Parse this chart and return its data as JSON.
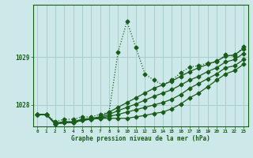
{
  "xlabel": "Graphe pression niveau de la mer (hPa)",
  "background_color": "#cce8e8",
  "grid_color": "#a8cccc",
  "line_color": "#1a5c1a",
  "ylim": [
    1027.55,
    1030.1
  ],
  "xlim": [
    -0.5,
    23.5
  ],
  "yticks": [
    1028,
    1029
  ],
  "xticks": [
    0,
    1,
    2,
    3,
    4,
    5,
    6,
    7,
    8,
    9,
    10,
    11,
    12,
    13,
    14,
    15,
    16,
    17,
    18,
    19,
    20,
    21,
    22,
    23
  ],
  "series": [
    {
      "data": [
        1027.8,
        1027.8,
        1027.65,
        1027.7,
        1027.7,
        1027.75,
        1027.75,
        1027.8,
        1027.85,
        1029.1,
        1029.75,
        1029.2,
        1028.65,
        1028.52,
        1028.42,
        1028.52,
        1028.67,
        1028.8,
        1028.82,
        1028.88,
        1028.9,
        1029.05,
        1029.02,
        1029.22
      ],
      "ls": "dotted",
      "lw": 0.9,
      "ms": 2.5,
      "marker": "D"
    },
    {
      "data": [
        1027.8,
        1027.8,
        1027.6,
        1027.63,
        1027.63,
        1027.68,
        1027.7,
        1027.72,
        1027.72,
        1027.72,
        1027.72,
        1027.75,
        1027.78,
        1027.82,
        1027.85,
        1027.92,
        1028.02,
        1028.15,
        1028.25,
        1028.38,
        1028.52,
        1028.65,
        1028.72,
        1028.85
      ],
      "ls": "solid",
      "lw": 0.9,
      "ms": 2.5,
      "marker": "D"
    },
    {
      "data": [
        1027.8,
        1027.8,
        1027.6,
        1027.63,
        1027.63,
        1027.68,
        1027.7,
        1027.72,
        1027.76,
        1027.8,
        1027.85,
        1027.9,
        1027.95,
        1028.0,
        1028.05,
        1028.12,
        1028.22,
        1028.35,
        1028.45,
        1028.55,
        1028.65,
        1028.78,
        1028.82,
        1028.95
      ],
      "ls": "solid",
      "lw": 0.9,
      "ms": 2.5,
      "marker": "D"
    },
    {
      "data": [
        1027.8,
        1027.8,
        1027.6,
        1027.63,
        1027.63,
        1027.68,
        1027.7,
        1027.73,
        1027.8,
        1027.88,
        1027.95,
        1028.02,
        1028.1,
        1028.18,
        1028.25,
        1028.32,
        1028.42,
        1028.52,
        1028.6,
        1028.7,
        1028.78,
        1028.9,
        1028.95,
        1029.08
      ],
      "ls": "solid",
      "lw": 0.9,
      "ms": 2.5,
      "marker": "D"
    },
    {
      "data": [
        1027.8,
        1027.8,
        1027.62,
        1027.65,
        1027.65,
        1027.7,
        1027.72,
        1027.75,
        1027.85,
        1027.95,
        1028.05,
        1028.15,
        1028.25,
        1028.35,
        1028.42,
        1028.5,
        1028.6,
        1028.7,
        1028.78,
        1028.85,
        1028.92,
        1029.02,
        1029.05,
        1029.18
      ],
      "ls": "solid",
      "lw": 0.9,
      "ms": 2.5,
      "marker": "D"
    }
  ]
}
